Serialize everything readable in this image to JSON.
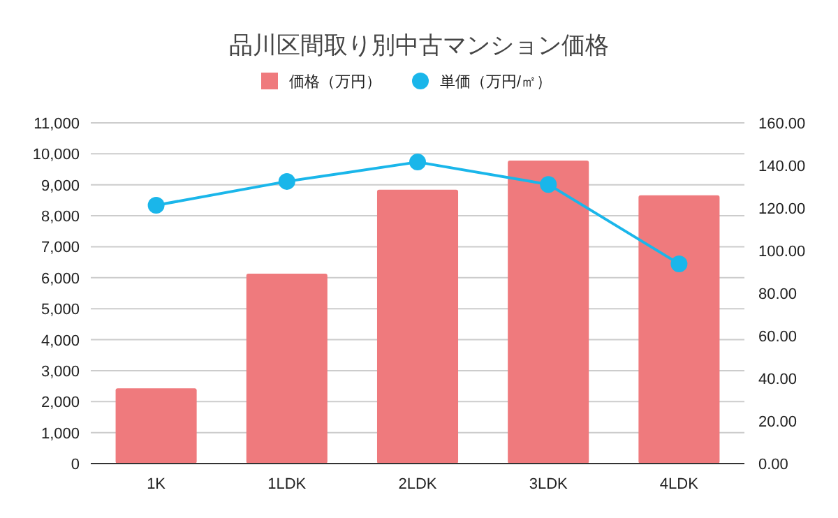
{
  "chart_data": {
    "type": "bar",
    "title": "品川区間取り別中古マンション価格",
    "categories": [
      "1K",
      "1LDK",
      "2LDK",
      "3LDK",
      "4LDK"
    ],
    "series": [
      {
        "name": "価格（万円）",
        "color": "#ef7a7d",
        "values": [
          2430,
          6130,
          8840,
          9780,
          8660
        ]
      },
      {
        "name": "単価（万円/㎡）",
        "color": "#1ab6ea",
        "type": "line",
        "axis": "y2",
        "marker": "circle",
        "values": [
          121.3,
          132.5,
          141.6,
          131.1,
          93.8
        ]
      }
    ],
    "ylim": [
      0,
      11000
    ],
    "yticks": [
      {
        "value": 0,
        "label": "0"
      },
      {
        "value": 1000,
        "label": "1,000"
      },
      {
        "value": 2000,
        "label": "2,000"
      },
      {
        "value": 3000,
        "label": "3,000"
      },
      {
        "value": 4000,
        "label": "4,000"
      },
      {
        "value": 5000,
        "label": "5,000"
      },
      {
        "value": 6000,
        "label": "6,000"
      },
      {
        "value": 7000,
        "label": "7,000"
      },
      {
        "value": 8000,
        "label": "8,000"
      },
      {
        "value": 9000,
        "label": "9,000"
      },
      {
        "value": 10000,
        "label": "10,000"
      },
      {
        "value": 11000,
        "label": "11,000"
      }
    ],
    "y2lim": [
      0,
      160
    ],
    "y2ticks": [
      {
        "value": 0,
        "label": "0.00"
      },
      {
        "value": 20,
        "label": "20.00"
      },
      {
        "value": 40,
        "label": "40.00"
      },
      {
        "value": 60,
        "label": "60.00"
      },
      {
        "value": 80,
        "label": "80.00"
      },
      {
        "value": 100,
        "label": "100.00"
      },
      {
        "value": 120,
        "label": "120.00"
      },
      {
        "value": 140,
        "label": "140.00"
      },
      {
        "value": 160,
        "label": "160.00"
      }
    ],
    "grid": "y",
    "legend": "top"
  }
}
